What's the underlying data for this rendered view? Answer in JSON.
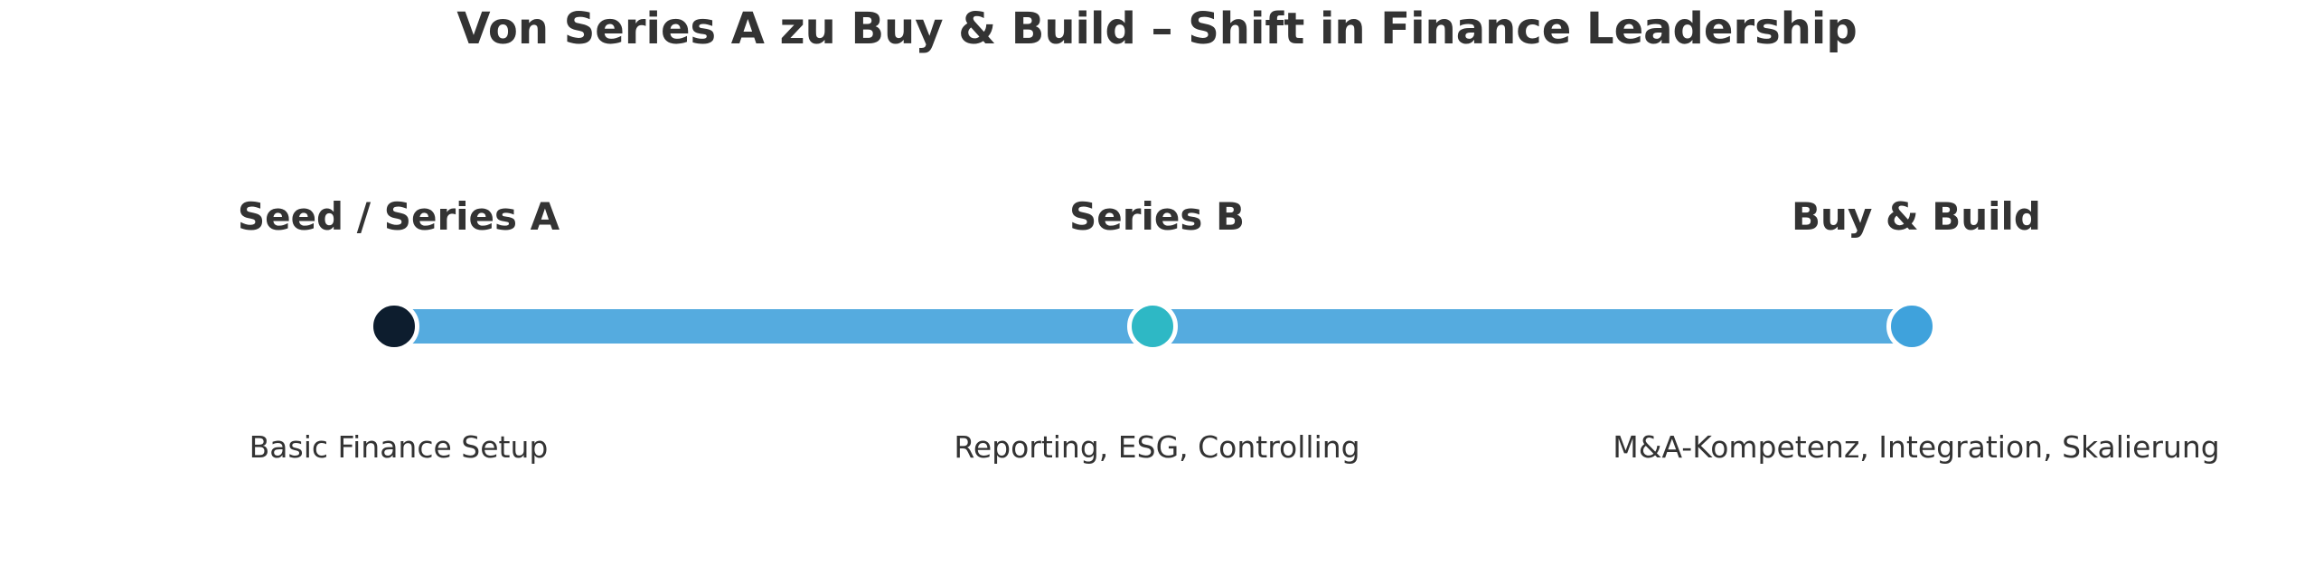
{
  "title": "Von Series A zu Buy & Build – Shift in Finance Leadership",
  "colors": {
    "track": "#55abdf",
    "text": "#333333",
    "node_seed_series_a": "#0d1d2e",
    "node_series_b": "#2eb8c5",
    "node_buy_build": "#3fa2dc",
    "node_ring": "#ffffff",
    "background": "#ffffff"
  },
  "chart_data": {
    "type": "timeline",
    "title": "Von Series A zu Buy & Build – Shift in Finance Leadership",
    "orientation": "horizontal",
    "stages": [
      {
        "label": "Seed / Series A",
        "description": "Basic Finance Setup",
        "position": 0,
        "node_color": "#0d1d2e"
      },
      {
        "label": "Series B",
        "description": "Reporting, ESG, Controlling",
        "position": 0.5,
        "node_color": "#2eb8c5"
      },
      {
        "label": "Buy & Build",
        "description": "M&A-Kompetenz, Integration, Skalierung",
        "position": 1,
        "node_color": "#3fa2dc"
      }
    ]
  },
  "milestones": [
    {
      "label": "Seed / Series A",
      "description": "Basic Finance Setup",
      "node_color": "#0d1d2e"
    },
    {
      "label": "Series B",
      "description": "Reporting, ESG, Controlling",
      "node_color": "#2eb8c5"
    },
    {
      "label": "Buy & Build",
      "description": "M&A-Kompetenz, Integration, Skalierung",
      "node_color": "#3fa2dc"
    }
  ]
}
